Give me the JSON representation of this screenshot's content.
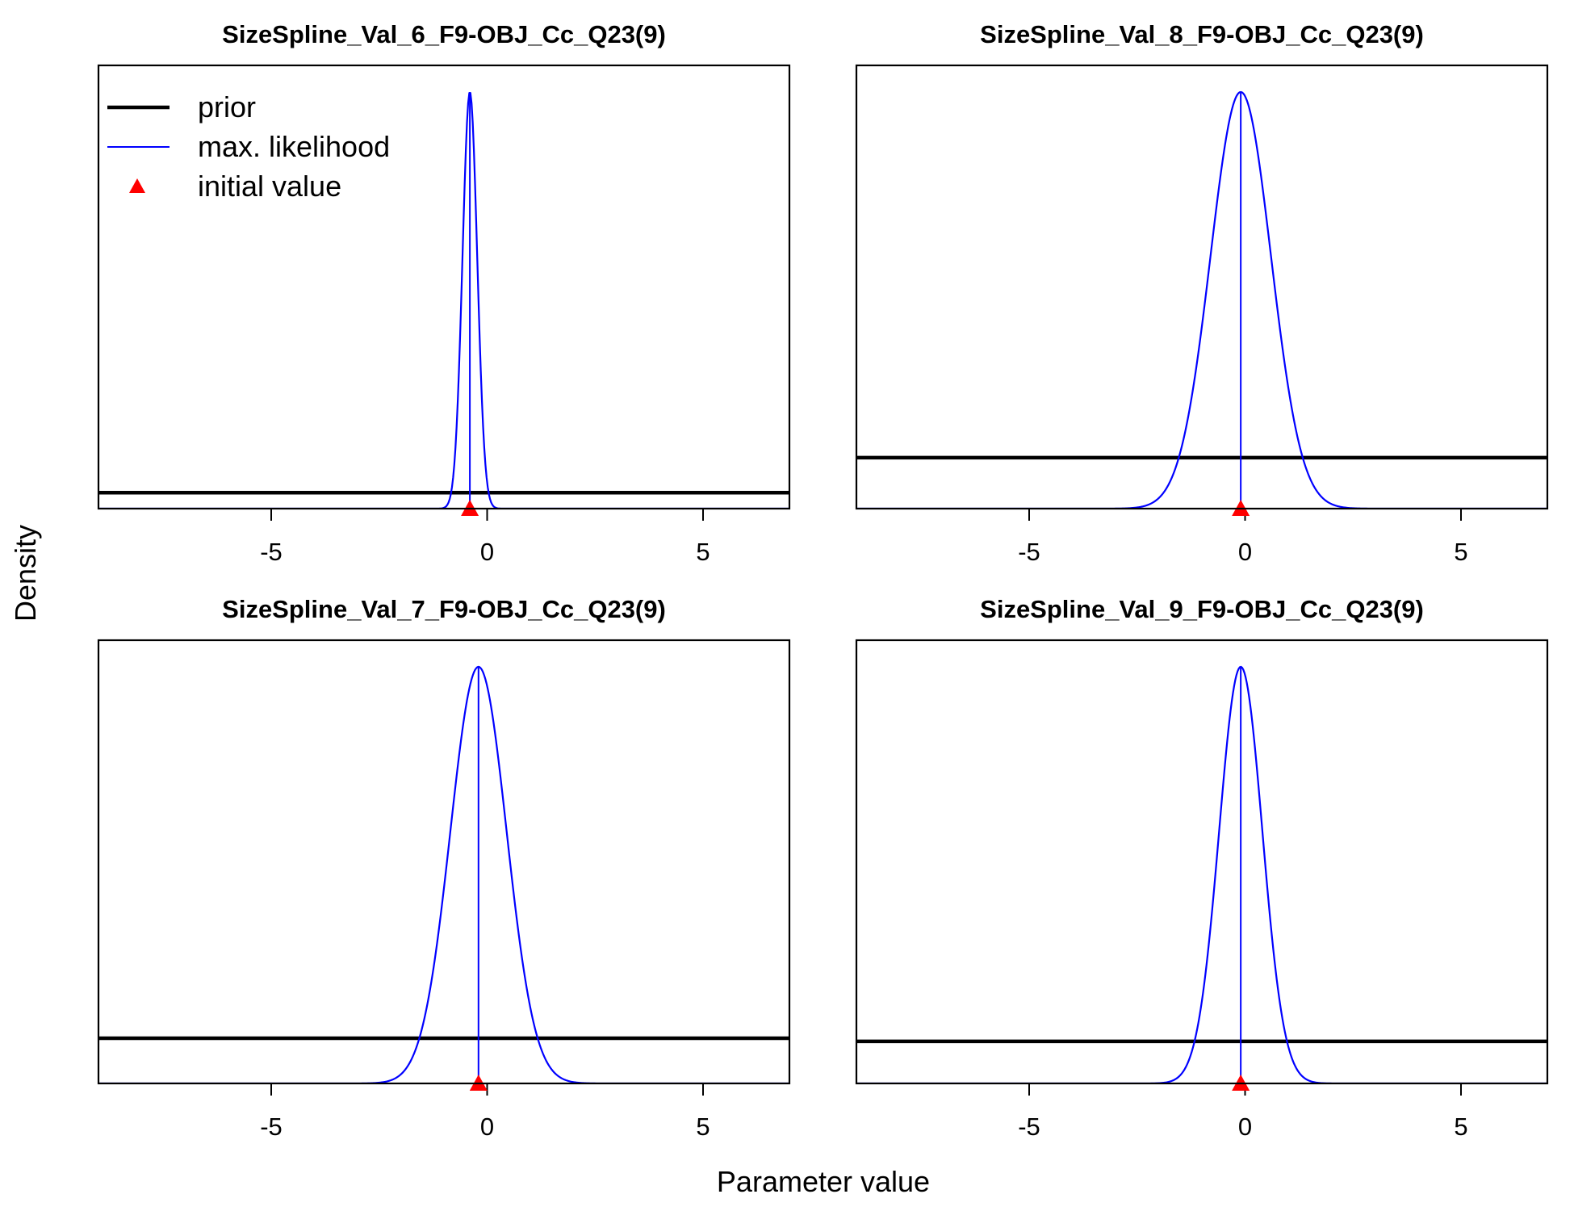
{
  "figure": {
    "ylabel": "Density",
    "xlabel": "Parameter value"
  },
  "legend": {
    "placement": "top-left of first panel",
    "entries": [
      {
        "label": "prior",
        "color": "#000000",
        "kind": "thick-line"
      },
      {
        "label": "max. likelihood",
        "color": "#0000ff",
        "kind": "thin-line"
      },
      {
        "label": "initial value",
        "color": "#ff0000",
        "kind": "triangle"
      }
    ]
  },
  "colors": {
    "prior": "#000000",
    "mle": "#0000ff",
    "init": "#ff0000",
    "axis": "#000000"
  },
  "chart_data": [
    {
      "type": "line",
      "title": "SizeSpline_Val_6_F9-OBJ_Cc_Q23(9)",
      "xlim": [
        -9,
        7
      ],
      "xticks": [
        -5,
        0,
        5
      ],
      "xtick_labels": [
        "-5",
        "0",
        "5"
      ],
      "series": [
        {
          "name": "prior",
          "kind": "flat",
          "relative_level": 0.036
        },
        {
          "name": "max. likelihood",
          "kind": "normal",
          "mean": -0.4,
          "sd": 0.17,
          "relative_peak": 0.94
        },
        {
          "name": "initial value",
          "kind": "point",
          "x": -0.4
        }
      ]
    },
    {
      "type": "line",
      "title": "SizeSpline_Val_8_F9-OBJ_Cc_Q23(9)",
      "xlim": [
        -9,
        7
      ],
      "xticks": [
        -5,
        0,
        5
      ],
      "xtick_labels": [
        "-5",
        "0",
        "5"
      ],
      "series": [
        {
          "name": "prior",
          "kind": "flat",
          "relative_level": 0.115
        },
        {
          "name": "max. likelihood",
          "kind": "normal",
          "mean": -0.1,
          "sd": 0.7,
          "relative_peak": 0.94
        },
        {
          "name": "initial value",
          "kind": "point",
          "x": -0.1
        }
      ]
    },
    {
      "type": "line",
      "title": "SizeSpline_Val_7_F9-OBJ_Cc_Q23(9)",
      "xlim": [
        -9,
        7
      ],
      "xticks": [
        -5,
        0,
        5
      ],
      "xtick_labels": [
        "-5",
        "0",
        "5"
      ],
      "series": [
        {
          "name": "prior",
          "kind": "flat",
          "relative_level": 0.102
        },
        {
          "name": "max. likelihood",
          "kind": "normal",
          "mean": -0.2,
          "sd": 0.65,
          "relative_peak": 0.94
        },
        {
          "name": "initial value",
          "kind": "point",
          "x": -0.2
        }
      ]
    },
    {
      "type": "line",
      "title": "SizeSpline_Val_9_F9-OBJ_Cc_Q23(9)",
      "xlim": [
        -9,
        7
      ],
      "xticks": [
        -5,
        0,
        5
      ],
      "xtick_labels": [
        "-5",
        "0",
        "5"
      ],
      "series": [
        {
          "name": "prior",
          "kind": "flat",
          "relative_level": 0.095
        },
        {
          "name": "max. likelihood",
          "kind": "normal",
          "mean": -0.1,
          "sd": 0.5,
          "relative_peak": 0.94
        },
        {
          "name": "initial value",
          "kind": "point",
          "x": -0.1
        }
      ]
    }
  ]
}
